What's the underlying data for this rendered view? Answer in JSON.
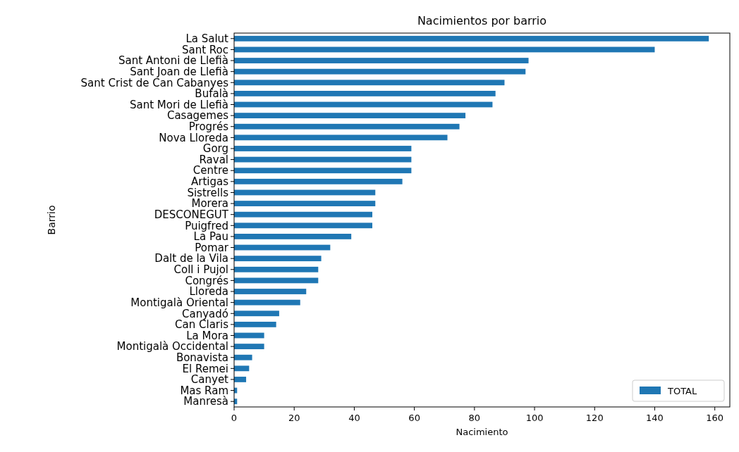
{
  "chart_data": {
    "type": "bar",
    "orientation": "horizontal",
    "title": "Nacimientos por barrio",
    "xlabel": "Nacimiento",
    "ylabel": "Barrio",
    "categories": [
      "La Salut",
      "Sant Roc",
      "Sant Antoni de Llefià",
      "Sant Joan de Llefià",
      "Sant Crist de Can Cabanyes",
      "Bufalà",
      "Sant Mori de Llefià",
      "Casagemes",
      "Progrés",
      "Nova Lloreda",
      "Gorg",
      "Raval",
      "Centre",
      "Artigas",
      "Sistrells",
      "Morera",
      "DESCONEGUT",
      "Puigfred",
      "La Pau",
      "Pomar",
      "Dalt de la Vila",
      "Coll i Pujol",
      "Congrés",
      "Lloreda",
      "Montigalà Oriental",
      "Canyadó",
      "Can Claris",
      "La Mora",
      "Montigalà Occidental",
      "Bonavista",
      "El Remei",
      "Canyet",
      "Mas Ram",
      "Manresà"
    ],
    "series": [
      {
        "name": "TOTAL",
        "color": "#1f77b4",
        "values": [
          158,
          140,
          98,
          97,
          90,
          87,
          86,
          77,
          75,
          71,
          59,
          59,
          59,
          56,
          47,
          47,
          46,
          46,
          39,
          32,
          29,
          28,
          28,
          24,
          22,
          15,
          14,
          10,
          10,
          6,
          5,
          4,
          1,
          1
        ]
      }
    ],
    "xlim": [
      0,
      165
    ],
    "xticks": [
      0,
      20,
      40,
      60,
      80,
      100,
      120,
      140,
      160
    ],
    "legend": "bottom right"
  }
}
